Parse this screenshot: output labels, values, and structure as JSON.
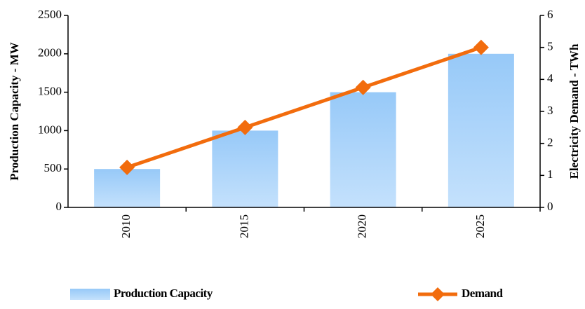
{
  "chart_data": {
    "type": "bar",
    "categories": [
      "2010",
      "2015",
      "2020",
      "2025"
    ],
    "series": [
      {
        "name": "Production Capacity",
        "type": "bar",
        "color": "#a6d0fa",
        "values": [
          500,
          1000,
          1500,
          2000
        ]
      },
      {
        "name": "Demand",
        "type": "line",
        "axis": "y2",
        "color": "#f26c0d",
        "values": [
          1.25,
          2.5,
          3.75,
          5
        ]
      }
    ],
    "ylabel": "Production Capacity - MW",
    "y2label": "Electricity Demand - TWh",
    "ylim": [
      0,
      2500
    ],
    "yticks": [
      0,
      500,
      1000,
      1500,
      2000,
      2500
    ],
    "y2lim": [
      0,
      6
    ],
    "y2ticks": [
      0,
      1,
      2,
      3,
      4,
      5,
      6
    ],
    "grid": false,
    "legend": "bottom"
  }
}
